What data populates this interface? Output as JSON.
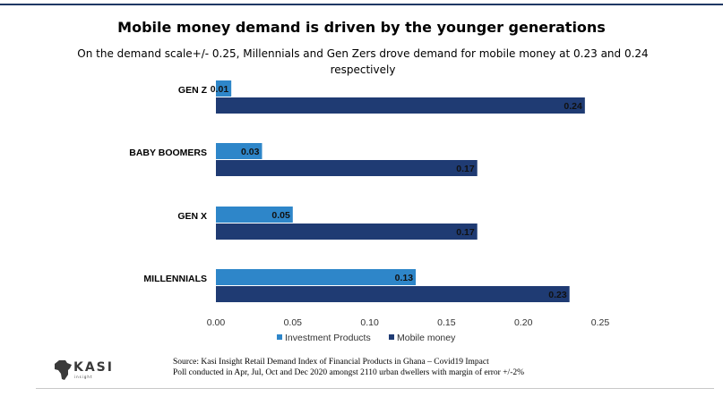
{
  "chart_data": {
    "type": "bar",
    "orientation": "horizontal",
    "title": "Mobile money demand is driven by the younger generations",
    "subtitle": "On the demand scale+/- 0.25, Millennials and Gen Zers drove demand for mobile money at 0.23 and 0.24 respectively",
    "categories": [
      "GEN Z",
      "BABY BOOMERS",
      "GEN X",
      "MILLENNIALS"
    ],
    "series": [
      {
        "name": "Investment Products",
        "color": "#2e86c9",
        "values": [
          0.01,
          0.03,
          0.05,
          0.13
        ],
        "labels": [
          "0.01",
          "0.03",
          "0.05",
          "0.13"
        ]
      },
      {
        "name": "Mobile money",
        "color": "#1f3b73",
        "values": [
          0.24,
          0.17,
          0.17,
          0.23
        ],
        "labels": [
          "0.24",
          "0.17",
          "0.17",
          "0.23"
        ]
      }
    ],
    "xlim": [
      0,
      0.25
    ],
    "xticks": [
      0,
      0.05,
      0.1,
      0.15,
      0.2,
      0.25
    ],
    "xtick_labels": [
      "0.00",
      "0.05",
      "0.10",
      "0.15",
      "0.20",
      "0.25"
    ],
    "legend_position": "bottom",
    "grid": false
  },
  "source": {
    "line1": "Source: Kasi Insight  Retail Demand Index of  Financial Products in Ghana – Covid19 Impact",
    "line2": "Poll conducted in Apr, Jul, Oct and Dec 2020 amongst 2110 urban dwellers with margin of error +/-2%"
  },
  "logo": {
    "text": "KASI",
    "tagline": "insight"
  }
}
